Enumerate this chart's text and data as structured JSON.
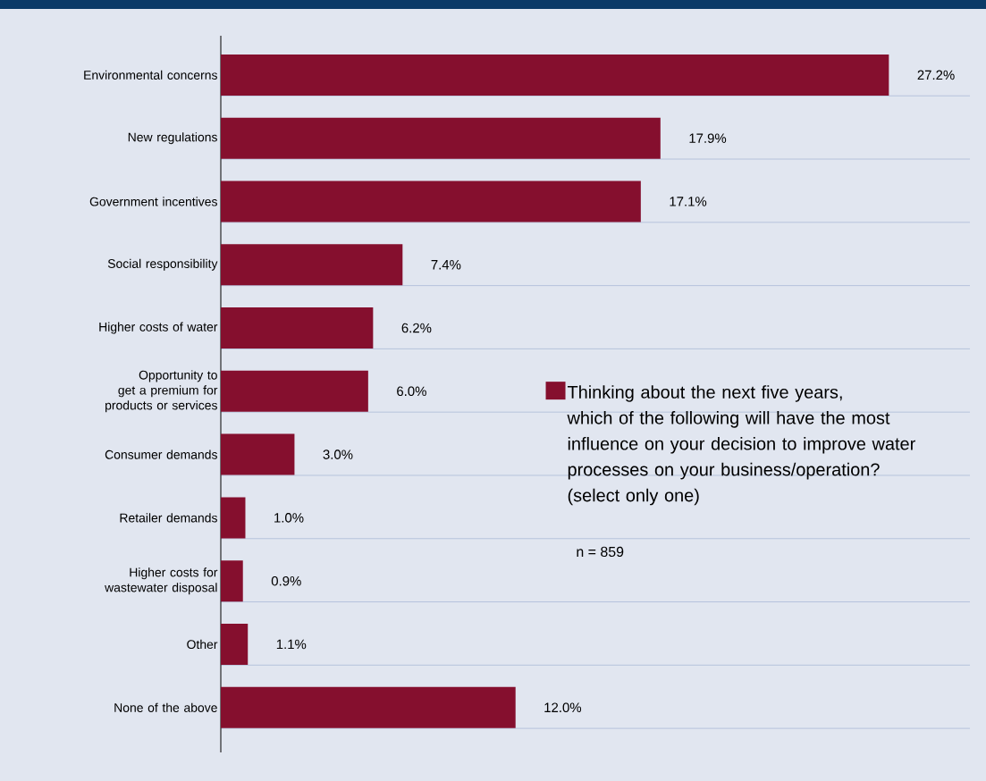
{
  "chart_data": {
    "type": "bar",
    "orientation": "horizontal",
    "categories": [
      "Environmental concerns",
      "New regulations",
      "Government incentives",
      "Social responsibility",
      "Higher costs of water",
      "Opportunity to get a premium for products or services",
      "Consumer demands",
      "Retailer demands",
      "Higher costs for wastewater disposal",
      "Other",
      "None of the above"
    ],
    "series": [
      {
        "name": "Thinking about the next five years, which of the following will have the most influence on your decision to improve water processes on your business/operation? (select only one)",
        "color": "#850f2e",
        "values": [
          27.2,
          17.9,
          17.1,
          7.4,
          6.2,
          6.0,
          3.0,
          1.0,
          0.9,
          1.1,
          12.0
        ],
        "value_labels": [
          "27.2%",
          "17.9%",
          "17.1%",
          "7.4%",
          "6.2%",
          "6.0%",
          "3.0%",
          "1.0%",
          "0.9%",
          "1.1%",
          "12.0%"
        ]
      }
    ],
    "xlim": [
      0,
      30.5
    ],
    "tick_labels": "y",
    "grid": "y",
    "legend": "right",
    "annotations": [
      "n = 859"
    ]
  }
}
